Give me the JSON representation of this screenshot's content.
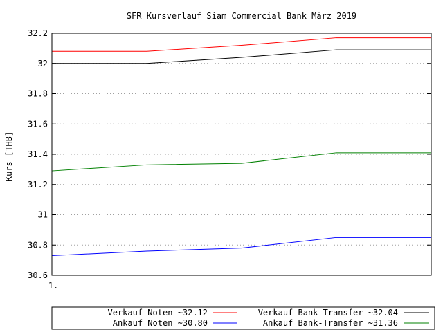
{
  "chart_data": {
    "type": "line",
    "title": "SFR Kursverlauf Siam Commercial Bank März 2019",
    "ylabel": "Kurs [THB]",
    "xlabel": "",
    "xlim": [
      1,
      5
    ],
    "ylim": [
      30.6,
      32.2
    ],
    "yticks": [
      "32.2",
      "32",
      "31.8",
      "31.6",
      "31.4",
      "31.2",
      "31",
      "30.8",
      "30.6"
    ],
    "xticks": [
      {
        "x": 1,
        "label": "1."
      }
    ],
    "grid": true,
    "legend_position": "bottom",
    "x": [
      1,
      2,
      3,
      4,
      5
    ],
    "series": [
      {
        "name": "Verkauf Noten ~32.12",
        "color": "#ff0000",
        "values": [
          32.08,
          32.08,
          32.12,
          32.17,
          32.17
        ]
      },
      {
        "name": "Verkauf Bank-Transfer ~32.04",
        "color": "#000000",
        "values": [
          32.0,
          32.0,
          32.04,
          32.09,
          32.09
        ]
      },
      {
        "name": "Ankauf Noten ~30.80",
        "color": "#0000ff",
        "values": [
          30.73,
          30.76,
          30.78,
          30.85,
          30.85
        ]
      },
      {
        "name": "Ankauf Bank-Transfer ~31.36",
        "color": "#008000",
        "values": [
          31.29,
          31.33,
          31.34,
          31.41,
          31.41
        ]
      }
    ]
  }
}
